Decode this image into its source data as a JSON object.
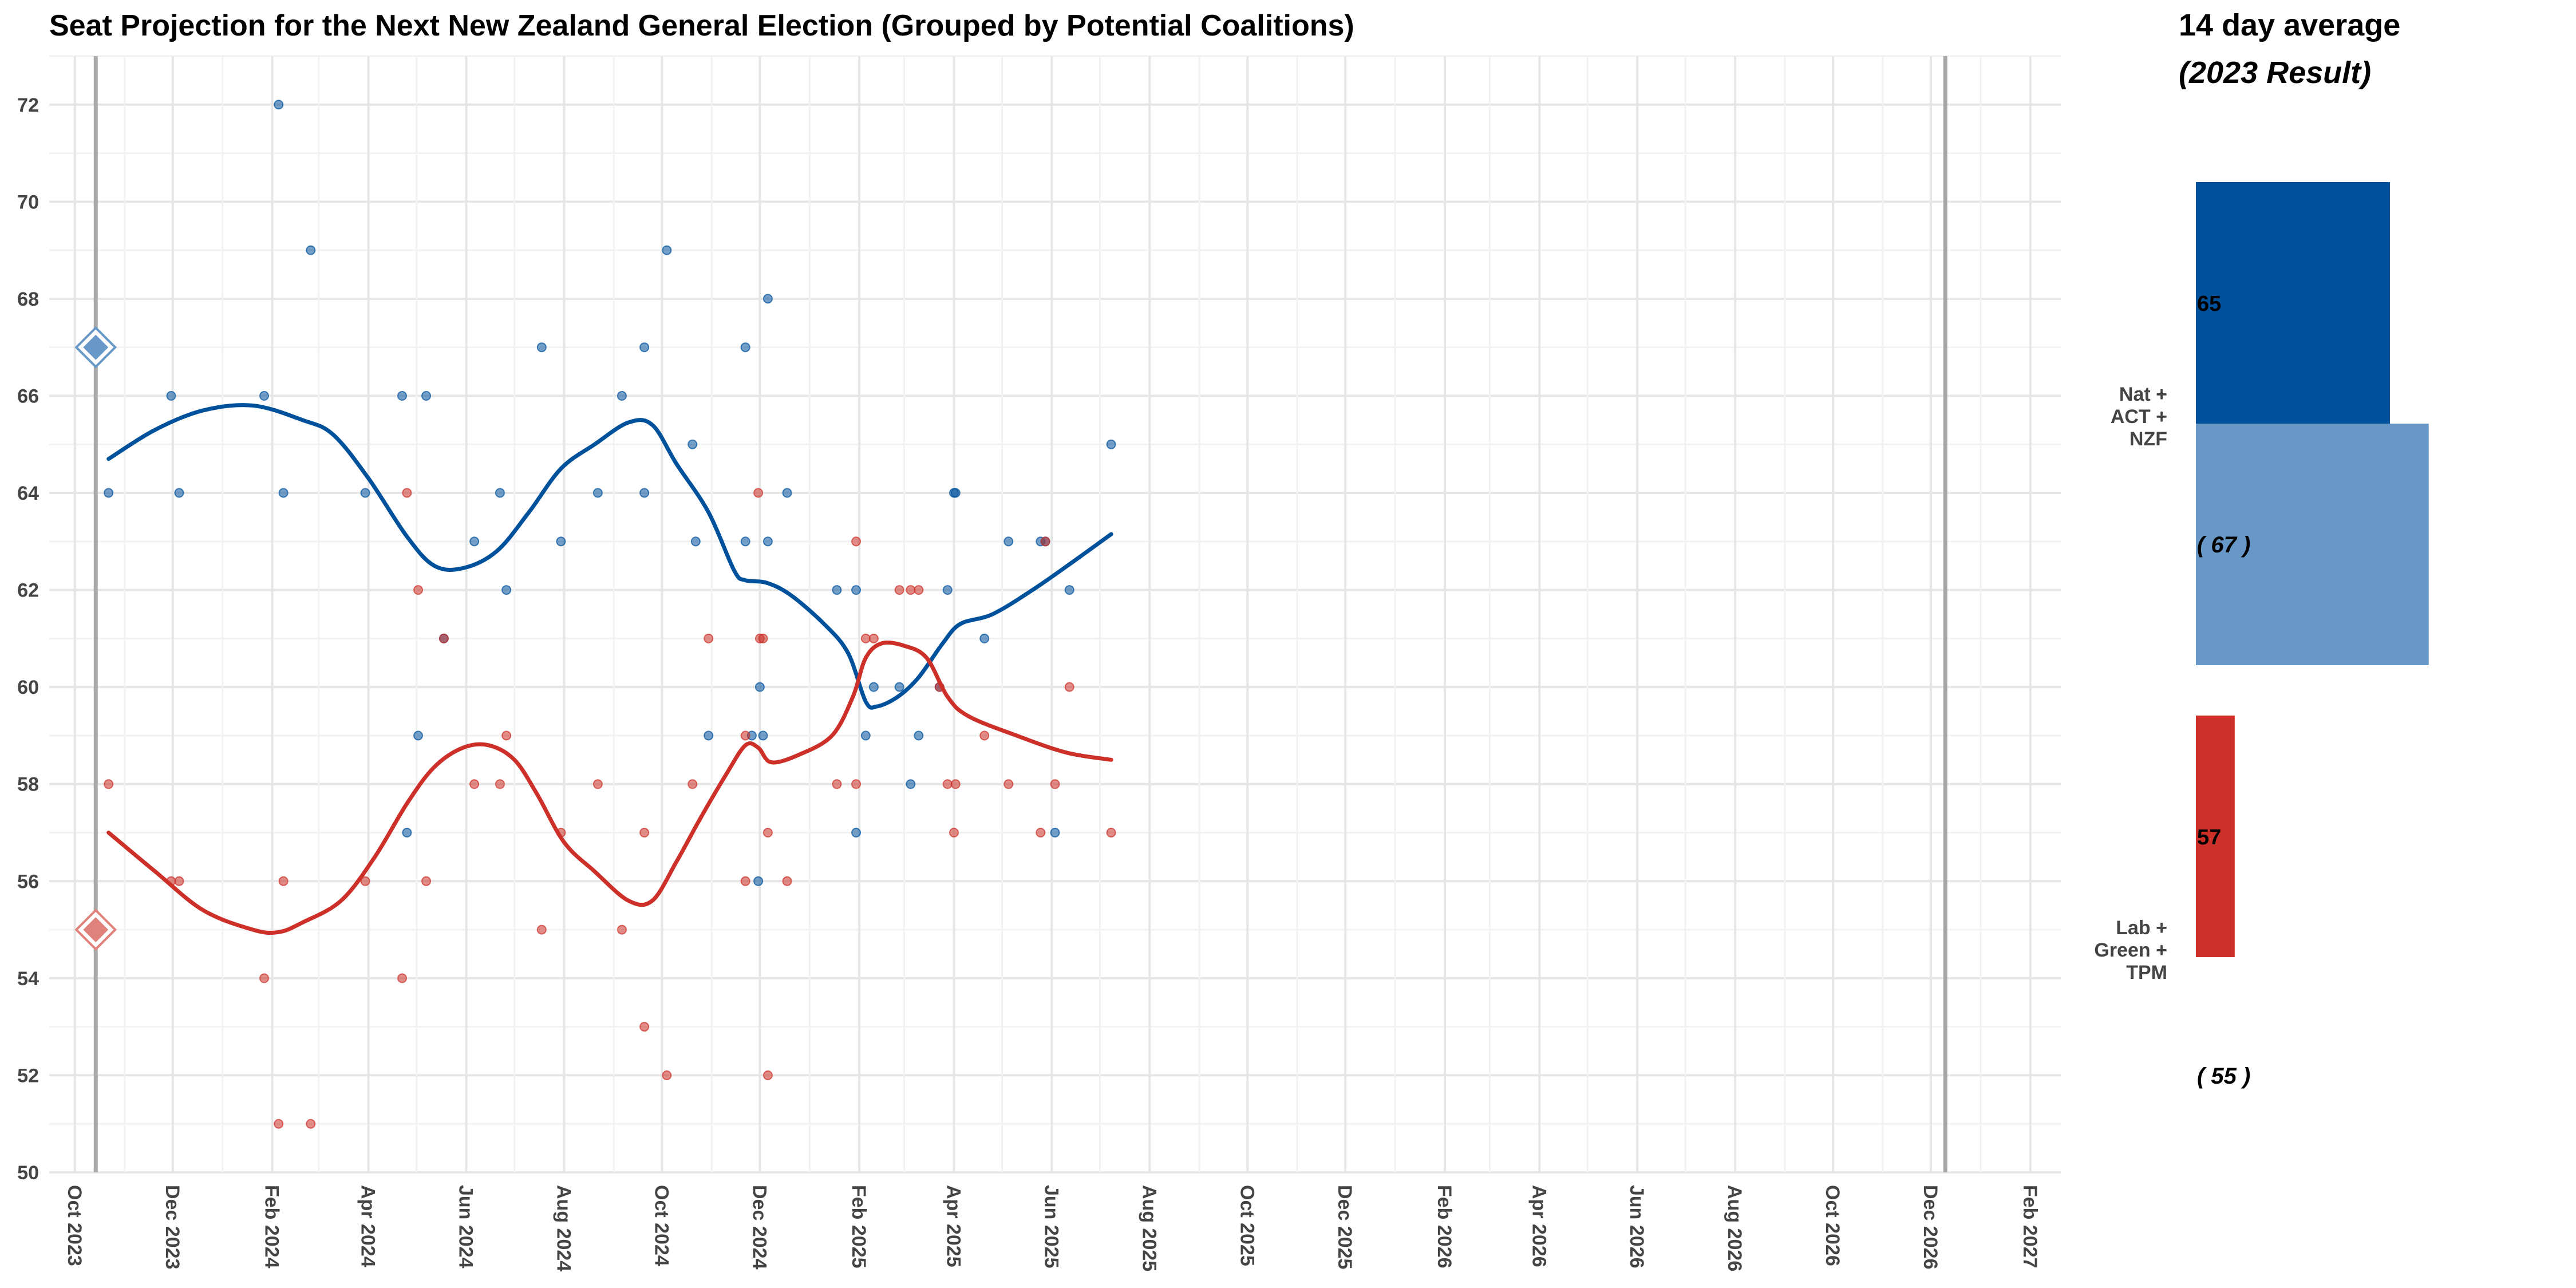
{
  "chart_data": [
    {
      "type": "scatter",
      "title": "Seat Projection for the Next New Zealand General Election (Grouped by Potential Coalitions)",
      "xlabel": "",
      "ylabel": "",
      "x_range": [
        "2023-09-15",
        "2027-02-20"
      ],
      "ylim": [
        50,
        73
      ],
      "y_ticks": [
        50,
        52,
        54,
        56,
        58,
        60,
        62,
        64,
        66,
        68,
        70,
        72
      ],
      "x_ticks": [
        "2023-10-01",
        "2023-12-01",
        "2024-02-01",
        "2024-04-01",
        "2024-06-01",
        "2024-08-01",
        "2024-10-01",
        "2024-12-01",
        "2025-02-01",
        "2025-04-01",
        "2025-06-01",
        "2025-08-01",
        "2025-10-01",
        "2025-12-01",
        "2026-02-01",
        "2026-04-01",
        "2026-06-01",
        "2026-08-01",
        "2026-10-01",
        "2026-12-01",
        "2027-02-01"
      ],
      "x_tick_labels": [
        "Oct 2023",
        "Dec 2023",
        "Feb 2024",
        "Apr 2024",
        "Jun 2024",
        "Aug 2024",
        "Oct 2024",
        "Dec 2024",
        "Feb 2025",
        "Apr 2025",
        "Jun 2025",
        "Aug 2025",
        "Oct 2025",
        "Dec 2025",
        "Feb 2026",
        "Apr 2026",
        "Jun 2026",
        "Aug 2026",
        "Oct 2026",
        "Dec 2026",
        "Feb 2027"
      ],
      "grid": true,
      "reference_lines": [
        "2023-10-14",
        "2026-12-10"
      ],
      "election_2023": [
        {
          "x": "2023-10-14",
          "y": 67,
          "color": "#6898c8"
        },
        {
          "x": "2023-10-14",
          "y": 55,
          "color": "#e0827c"
        }
      ],
      "series": [
        {
          "color": "#00519c",
          "points": [
            {
              "x": "2023-10-22",
              "y": 64
            },
            {
              "x": "2023-11-30",
              "y": 66
            },
            {
              "x": "2023-12-05",
              "y": 64
            },
            {
              "x": "2024-01-27",
              "y": 66
            },
            {
              "x": "2024-02-05",
              "y": 72
            },
            {
              "x": "2024-02-08",
              "y": 64
            },
            {
              "x": "2024-02-25",
              "y": 69
            },
            {
              "x": "2024-03-30",
              "y": 64
            },
            {
              "x": "2024-04-22",
              "y": 66
            },
            {
              "x": "2024-04-25",
              "y": 57
            },
            {
              "x": "2024-05-02",
              "y": 59
            },
            {
              "x": "2024-05-07",
              "y": 66
            },
            {
              "x": "2024-05-18",
              "y": 61
            },
            {
              "x": "2024-06-06",
              "y": 63
            },
            {
              "x": "2024-06-22",
              "y": 64
            },
            {
              "x": "2024-06-26",
              "y": 62
            },
            {
              "x": "2024-07-18",
              "y": 67
            },
            {
              "x": "2024-07-30",
              "y": 63
            },
            {
              "x": "2024-08-22",
              "y": 64
            },
            {
              "x": "2024-09-06",
              "y": 66
            },
            {
              "x": "2024-09-20",
              "y": 67
            },
            {
              "x": "2024-09-20",
              "y": 64
            },
            {
              "x": "2024-10-04",
              "y": 69
            },
            {
              "x": "2024-10-20",
              "y": 65
            },
            {
              "x": "2024-10-22",
              "y": 63
            },
            {
              "x": "2024-10-30",
              "y": 59
            },
            {
              "x": "2024-11-22",
              "y": 67
            },
            {
              "x": "2024-11-22",
              "y": 63
            },
            {
              "x": "2024-11-26",
              "y": 59
            },
            {
              "x": "2024-11-30",
              "y": 56
            },
            {
              "x": "2024-12-01",
              "y": 60
            },
            {
              "x": "2024-12-03",
              "y": 59
            },
            {
              "x": "2024-12-06",
              "y": 68
            },
            {
              "x": "2024-12-06",
              "y": 63
            },
            {
              "x": "2024-12-18",
              "y": 64
            },
            {
              "x": "2025-01-18",
              "y": 62
            },
            {
              "x": "2025-01-30",
              "y": 62
            },
            {
              "x": "2025-01-30",
              "y": 57
            },
            {
              "x": "2025-02-05",
              "y": 59
            },
            {
              "x": "2025-02-10",
              "y": 60
            },
            {
              "x": "2025-02-26",
              "y": 60
            },
            {
              "x": "2025-03-05",
              "y": 58
            },
            {
              "x": "2025-03-10",
              "y": 59
            },
            {
              "x": "2025-03-23",
              "y": 60
            },
            {
              "x": "2025-03-28",
              "y": 62
            },
            {
              "x": "2025-04-01",
              "y": 64
            },
            {
              "x": "2025-04-02",
              "y": 64
            },
            {
              "x": "2025-04-20",
              "y": 61
            },
            {
              "x": "2025-05-05",
              "y": 63
            },
            {
              "x": "2025-05-25",
              "y": 63
            },
            {
              "x": "2025-05-28",
              "y": 63
            },
            {
              "x": "2025-06-03",
              "y": 57
            },
            {
              "x": "2025-06-12",
              "y": 62
            },
            {
              "x": "2025-07-08",
              "y": 65
            }
          ],
          "trend": [
            {
              "x": "2023-10-22",
              "y": 64.7
            },
            {
              "x": "2023-11-20",
              "y": 65.3
            },
            {
              "x": "2023-12-20",
              "y": 65.7
            },
            {
              "x": "2024-01-20",
              "y": 65.8
            },
            {
              "x": "2024-02-20",
              "y": 65.5
            },
            {
              "x": "2024-03-10",
              "y": 65.2
            },
            {
              "x": "2024-04-01",
              "y": 64.3
            },
            {
              "x": "2024-04-25",
              "y": 63.1
            },
            {
              "x": "2024-05-12",
              "y": 62.5
            },
            {
              "x": "2024-05-30",
              "y": 62.45
            },
            {
              "x": "2024-06-20",
              "y": 62.8
            },
            {
              "x": "2024-07-10",
              "y": 63.6
            },
            {
              "x": "2024-07-30",
              "y": 64.5
            },
            {
              "x": "2024-08-20",
              "y": 65.0
            },
            {
              "x": "2024-09-10",
              "y": 65.45
            },
            {
              "x": "2024-09-25",
              "y": 65.4
            },
            {
              "x": "2024-10-10",
              "y": 64.6
            },
            {
              "x": "2024-10-30",
              "y": 63.6
            },
            {
              "x": "2024-11-15",
              "y": 62.4
            },
            {
              "x": "2024-11-22",
              "y": 62.2
            },
            {
              "x": "2024-12-05",
              "y": 62.15
            },
            {
              "x": "2024-12-20",
              "y": 61.9
            },
            {
              "x": "2025-01-10",
              "y": 61.3
            },
            {
              "x": "2025-01-25",
              "y": 60.7
            },
            {
              "x": "2025-02-05",
              "y": 59.7
            },
            {
              "x": "2025-02-12",
              "y": 59.6
            },
            {
              "x": "2025-02-25",
              "y": 59.8
            },
            {
              "x": "2025-03-10",
              "y": 60.2
            },
            {
              "x": "2025-03-25",
              "y": 60.9
            },
            {
              "x": "2025-04-05",
              "y": 61.3
            },
            {
              "x": "2025-04-25",
              "y": 61.5
            },
            {
              "x": "2025-05-20",
              "y": 62.0
            },
            {
              "x": "2025-06-15",
              "y": 62.6
            },
            {
              "x": "2025-07-08",
              "y": 63.15
            }
          ]
        },
        {
          "color": "#cc3028",
          "points": [
            {
              "x": "2023-10-22",
              "y": 58
            },
            {
              "x": "2023-11-30",
              "y": 56
            },
            {
              "x": "2023-12-05",
              "y": 56
            },
            {
              "x": "2024-01-27",
              "y": 54
            },
            {
              "x": "2024-02-05",
              "y": 51
            },
            {
              "x": "2024-02-08",
              "y": 56
            },
            {
              "x": "2024-02-25",
              "y": 51
            },
            {
              "x": "2024-03-30",
              "y": 56
            },
            {
              "x": "2024-04-22",
              "y": 54
            },
            {
              "x": "2024-04-25",
              "y": 64
            },
            {
              "x": "2024-05-02",
              "y": 62
            },
            {
              "x": "2024-05-07",
              "y": 56
            },
            {
              "x": "2024-05-18",
              "y": 61
            },
            {
              "x": "2024-06-06",
              "y": 58
            },
            {
              "x": "2024-06-22",
              "y": 58
            },
            {
              "x": "2024-06-26",
              "y": 59
            },
            {
              "x": "2024-07-18",
              "y": 55
            },
            {
              "x": "2024-07-30",
              "y": 57
            },
            {
              "x": "2024-08-22",
              "y": 58
            },
            {
              "x": "2024-09-06",
              "y": 55
            },
            {
              "x": "2024-09-20",
              "y": 53
            },
            {
              "x": "2024-09-20",
              "y": 57
            },
            {
              "x": "2024-10-04",
              "y": 52
            },
            {
              "x": "2024-10-20",
              "y": 58
            },
            {
              "x": "2024-10-30",
              "y": 61
            },
            {
              "x": "2024-11-22",
              "y": 59
            },
            {
              "x": "2024-11-22",
              "y": 56
            },
            {
              "x": "2024-11-30",
              "y": 64
            },
            {
              "x": "2024-12-01",
              "y": 61
            },
            {
              "x": "2024-12-03",
              "y": 61
            },
            {
              "x": "2024-12-06",
              "y": 57
            },
            {
              "x": "2024-12-06",
              "y": 52
            },
            {
              "x": "2024-12-18",
              "y": 56
            },
            {
              "x": "2025-01-18",
              "y": 58
            },
            {
              "x": "2025-01-30",
              "y": 58
            },
            {
              "x": "2025-01-30",
              "y": 63
            },
            {
              "x": "2025-02-05",
              "y": 61
            },
            {
              "x": "2025-02-10",
              "y": 61
            },
            {
              "x": "2025-02-26",
              "y": 62
            },
            {
              "x": "2025-03-05",
              "y": 62
            },
            {
              "x": "2025-03-10",
              "y": 62
            },
            {
              "x": "2025-03-23",
              "y": 60
            },
            {
              "x": "2025-03-28",
              "y": 58
            },
            {
              "x": "2025-04-01",
              "y": 57
            },
            {
              "x": "2025-04-02",
              "y": 58
            },
            {
              "x": "2025-04-20",
              "y": 59
            },
            {
              "x": "2025-05-05",
              "y": 58
            },
            {
              "x": "2025-05-25",
              "y": 57
            },
            {
              "x": "2025-05-28",
              "y": 63
            },
            {
              "x": "2025-06-03",
              "y": 58
            },
            {
              "x": "2025-06-12",
              "y": 60
            },
            {
              "x": "2025-07-08",
              "y": 57
            }
          ],
          "trend": [
            {
              "x": "2023-10-22",
              "y": 57.0
            },
            {
              "x": "2023-11-20",
              "y": 56.2
            },
            {
              "x": "2023-12-20",
              "y": 55.4
            },
            {
              "x": "2024-01-20",
              "y": 55.0
            },
            {
              "x": "2024-02-05",
              "y": 54.95
            },
            {
              "x": "2024-02-20",
              "y": 55.15
            },
            {
              "x": "2024-03-15",
              "y": 55.6
            },
            {
              "x": "2024-04-05",
              "y": 56.5
            },
            {
              "x": "2024-04-25",
              "y": 57.6
            },
            {
              "x": "2024-05-12",
              "y": 58.35
            },
            {
              "x": "2024-05-30",
              "y": 58.75
            },
            {
              "x": "2024-06-15",
              "y": 58.8
            },
            {
              "x": "2024-07-01",
              "y": 58.5
            },
            {
              "x": "2024-07-15",
              "y": 57.8
            },
            {
              "x": "2024-08-01",
              "y": 56.8
            },
            {
              "x": "2024-08-20",
              "y": 56.2
            },
            {
              "x": "2024-09-10",
              "y": 55.6
            },
            {
              "x": "2024-09-25",
              "y": 55.6
            },
            {
              "x": "2024-10-10",
              "y": 56.4
            },
            {
              "x": "2024-10-25",
              "y": 57.3
            },
            {
              "x": "2024-11-10",
              "y": 58.2
            },
            {
              "x": "2024-11-22",
              "y": 58.8
            },
            {
              "x": "2024-11-30",
              "y": 58.75
            },
            {
              "x": "2024-12-08",
              "y": 58.45
            },
            {
              "x": "2024-12-25",
              "y": 58.6
            },
            {
              "x": "2025-01-15",
              "y": 59.0
            },
            {
              "x": "2025-01-28",
              "y": 59.8
            },
            {
              "x": "2025-02-05",
              "y": 60.6
            },
            {
              "x": "2025-02-15",
              "y": 60.9
            },
            {
              "x": "2025-03-01",
              "y": 60.85
            },
            {
              "x": "2025-03-15",
              "y": 60.6
            },
            {
              "x": "2025-03-28",
              "y": 59.8
            },
            {
              "x": "2025-04-10",
              "y": 59.4
            },
            {
              "x": "2025-05-10",
              "y": 59.0
            },
            {
              "x": "2025-06-10",
              "y": 58.65
            },
            {
              "x": "2025-07-08",
              "y": 58.5
            }
          ]
        }
      ]
    },
    {
      "type": "bar",
      "title": "14 day average",
      "subtitle": "(2023 Result)",
      "x_range": [
        55,
        74
      ],
      "groups": [
        {
          "label_lines": [
            "Nat +",
            "ACT +",
            "NZF"
          ],
          "bars": [
            {
              "value": 65,
              "label": "65",
              "color": "#00519c"
            },
            {
              "value": 67,
              "label": "( 67 )",
              "color": "#6898c8"
            }
          ]
        },
        {
          "label_lines": [
            "Lab +",
            "Green +",
            "TPM"
          ],
          "bars": [
            {
              "value": 57,
              "label": "57",
              "color": "#cc3028"
            },
            {
              "value": 55,
              "label": "( 55 )",
              "color": "#e0827c"
            }
          ]
        }
      ]
    }
  ]
}
